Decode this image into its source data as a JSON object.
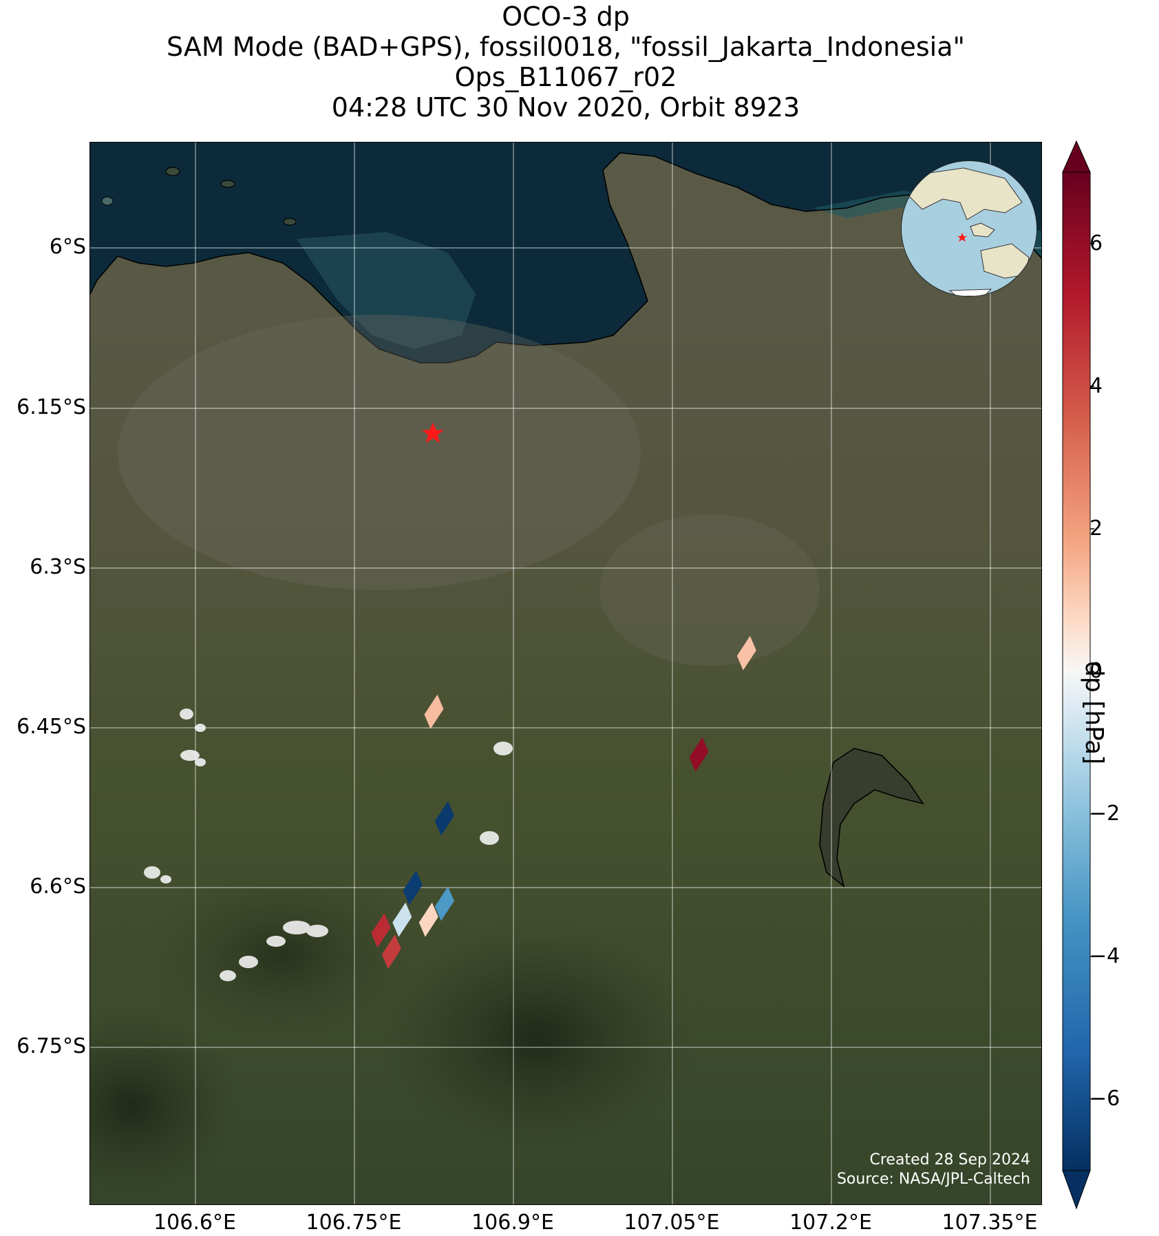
{
  "title": {
    "line1": "OCO-3 dp",
    "line2": "SAM Mode (BAD+GPS), fossil0018, \"fossil_Jakarta_Indonesia\"",
    "line3": "Ops_B11067_r02",
    "line4": "04:28 UTC 30 Nov 2020, Orbit 8923"
  },
  "axes": {
    "lat_labels": [
      "6°S",
      "6.15°S",
      "6.3°S",
      "6.45°S",
      "6.6°S",
      "6.75°S"
    ],
    "lon_labels": [
      "106.6°E",
      "106.75°E",
      "106.9°E",
      "107.05°E",
      "107.2°E",
      "107.35°E"
    ]
  },
  "colorbar": {
    "title": "dp [hPa]",
    "ticks": [
      "6",
      "4",
      "2",
      "0",
      "−2",
      "−4",
      "−6"
    ],
    "range": [
      -7,
      7
    ],
    "colormap": "RdBu_r"
  },
  "credit": {
    "line1": "Created 28 Sep 2024",
    "line2": "Source: NASA/JPL-Caltech"
  },
  "target": {
    "name": "fossil_Jakarta_Indonesia",
    "marker": "red-star",
    "lon": 106.824,
    "lat": -6.174
  },
  "colors": {
    "ocean": "#0c2a3a",
    "land": "#4a5238",
    "marker": "#ff1a1a",
    "coastline": "#000000"
  },
  "chart_data": {
    "type": "scatter",
    "title": "OCO-3 dp",
    "value_label": "dp [hPa]",
    "points": [
      {
        "lon": 107.12,
        "lat": -6.38,
        "dp": 1.2
      },
      {
        "lon": 106.825,
        "lat": -6.435,
        "dp": 1.3
      },
      {
        "lon": 107.075,
        "lat": -6.475,
        "dp": 6.0
      },
      {
        "lon": 106.835,
        "lat": -6.535,
        "dp": -6.7
      },
      {
        "lon": 106.805,
        "lat": -6.6,
        "dp": -6.6
      },
      {
        "lon": 106.835,
        "lat": -6.615,
        "dp": -3.3
      },
      {
        "lon": 106.775,
        "lat": -6.64,
        "dp": 4.8
      },
      {
        "lon": 106.795,
        "lat": -6.63,
        "dp": -0.8
      },
      {
        "lon": 106.82,
        "lat": -6.63,
        "dp": 0.8
      },
      {
        "lon": 106.785,
        "lat": -6.66,
        "dp": 4.4
      }
    ]
  }
}
